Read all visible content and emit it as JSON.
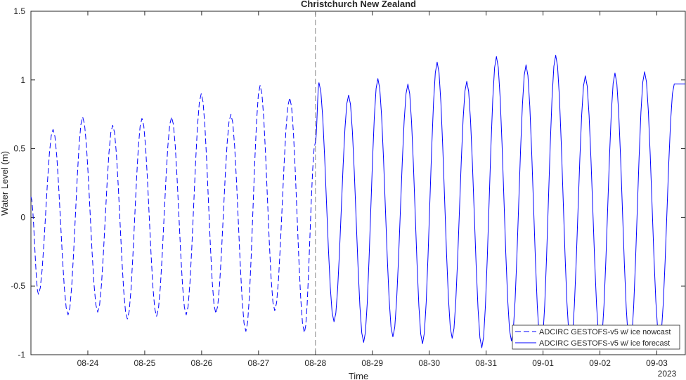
{
  "chart_data": {
    "type": "line",
    "title": "Christchurch New Zealand",
    "xlabel": "Time",
    "ylabel": "Water Level (m)",
    "xlim": [
      "2023-08-23T00:00",
      "2023-09-03T12:00"
    ],
    "ylim": [
      -1,
      1.5
    ],
    "yticks": [
      -1,
      -0.5,
      0,
      0.5,
      1,
      1.5
    ],
    "ytick_labels": [
      "-1",
      "-0.5",
      "0",
      "0.5",
      "1",
      "1.5"
    ],
    "xticks": [
      "2023-08-24",
      "2023-08-25",
      "2023-08-26",
      "2023-08-27",
      "2023-08-28",
      "2023-08-29",
      "2023-08-30",
      "2023-08-31",
      "2023-09-01",
      "2023-09-02",
      "2023-09-03"
    ],
    "xtick_labels": [
      "08-24",
      "08-25",
      "08-26",
      "08-27",
      "08-28",
      "08-29",
      "08-30",
      "08-31",
      "09-01",
      "09-02",
      "09-03"
    ],
    "xtick_secondary_label": "2023",
    "vertical_reference_line": {
      "x": "2023-08-28T00:00",
      "style": "dashed",
      "color": "#888888"
    },
    "legend_position": "bottom-right",
    "series": [
      {
        "name": "ADCIRC GESTOFS-v5 w/ ice nowcast",
        "style": "dashed",
        "color": "#0000ff",
        "extrema": [
          {
            "t": "2023-08-23T00:00",
            "v": 0.15
          },
          {
            "t": "2023-08-23T03:10",
            "v": -0.56
          },
          {
            "t": "2023-08-23T09:20",
            "v": 0.64
          },
          {
            "t": "2023-08-23T15:40",
            "v": -0.71
          },
          {
            "t": "2023-08-23T21:50",
            "v": 0.73
          },
          {
            "t": "2023-08-24T04:10",
            "v": -0.69
          },
          {
            "t": "2023-08-24T10:30",
            "v": 0.67
          },
          {
            "t": "2023-08-24T16:40",
            "v": -0.74
          },
          {
            "t": "2023-08-24T22:50",
            "v": 0.72
          },
          {
            "t": "2023-08-25T05:00",
            "v": -0.72
          },
          {
            "t": "2023-08-25T11:20",
            "v": 0.73
          },
          {
            "t": "2023-08-25T17:30",
            "v": -0.71
          },
          {
            "t": "2023-08-25T23:50",
            "v": 0.9
          },
          {
            "t": "2023-08-26T06:00",
            "v": -0.7
          },
          {
            "t": "2023-08-26T12:20",
            "v": 0.75
          },
          {
            "t": "2023-08-26T18:40",
            "v": -0.83
          },
          {
            "t": "2023-08-27T00:40",
            "v": 0.96
          },
          {
            "t": "2023-08-27T06:50",
            "v": -0.68
          },
          {
            "t": "2023-08-27T13:10",
            "v": 0.87
          },
          {
            "t": "2023-08-27T19:20",
            "v": -0.84
          },
          {
            "t": "2023-08-28T00:00",
            "v": 0.55
          }
        ]
      },
      {
        "name": "ADCIRC GESTOFS-v5 w/ ice forecast",
        "style": "solid",
        "color": "#0000ff",
        "extrema": [
          {
            "t": "2023-08-28T00:00",
            "v": 0.55
          },
          {
            "t": "2023-08-28T01:30",
            "v": 0.98
          },
          {
            "t": "2023-08-28T07:50",
            "v": -0.76
          },
          {
            "t": "2023-08-28T14:00",
            "v": 0.89
          },
          {
            "t": "2023-08-28T20:20",
            "v": -0.91
          },
          {
            "t": "2023-08-29T02:20",
            "v": 1.01
          },
          {
            "t": "2023-08-29T08:40",
            "v": -0.87
          },
          {
            "t": "2023-08-29T15:00",
            "v": 0.97
          },
          {
            "t": "2023-08-29T21:10",
            "v": -0.92
          },
          {
            "t": "2023-08-30T03:20",
            "v": 1.13
          },
          {
            "t": "2023-08-30T09:40",
            "v": -0.88
          },
          {
            "t": "2023-08-30T15:50",
            "v": 0.99
          },
          {
            "t": "2023-08-30T22:10",
            "v": -0.95
          },
          {
            "t": "2023-08-31T04:20",
            "v": 1.17
          },
          {
            "t": "2023-08-31T10:40",
            "v": -0.9
          },
          {
            "t": "2023-08-31T16:50",
            "v": 1.11
          },
          {
            "t": "2023-08-31T23:10",
            "v": -0.95
          },
          {
            "t": "2023-09-01T05:20",
            "v": 1.18
          },
          {
            "t": "2023-09-01T11:40",
            "v": -0.93
          },
          {
            "t": "2023-09-01T17:50",
            "v": 1.03
          },
          {
            "t": "2023-09-02T00:10",
            "v": -0.93
          },
          {
            "t": "2023-09-02T06:20",
            "v": 1.05
          },
          {
            "t": "2023-09-02T12:40",
            "v": -0.95
          },
          {
            "t": "2023-09-02T18:50",
            "v": 1.06
          },
          {
            "t": "2023-09-03T01:10",
            "v": -0.9
          },
          {
            "t": "2023-09-03T07:20",
            "v": 0.97
          },
          {
            "t": "2023-09-03T12:00",
            "v": 0.97
          }
        ]
      }
    ]
  }
}
